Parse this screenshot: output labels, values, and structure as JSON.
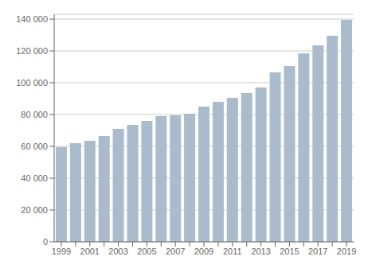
{
  "chart_data": {
    "type": "bar",
    "categories": [
      1999,
      null,
      2001,
      null,
      2003,
      null,
      2005,
      null,
      2007,
      null,
      2009,
      null,
      2011,
      null,
      2013,
      null,
      2015,
      null,
      2017,
      null,
      2019
    ],
    "values": [
      59500,
      62000,
      63500,
      66500,
      71000,
      73500,
      76000,
      79000,
      79500,
      80500,
      85000,
      88000,
      90500,
      93500,
      97000,
      106500,
      110500,
      118500,
      123500,
      129500,
      139500
    ],
    "color": "#aabbcc",
    "ylim": [
      0,
      143000
    ],
    "yticks": [
      0,
      {
        "value": 20000,
        "label": "20 000"
      },
      {
        "value": 40000,
        "label": "40 000"
      },
      {
        "value": 60000,
        "label": "60 000"
      },
      {
        "value": 80000,
        "label": "80 000"
      },
      {
        "value": 100000,
        "label": "100 000"
      },
      {
        "value": 120000,
        "label": "120 000"
      },
      {
        "value": 140000,
        "label": "140 000"
      }
    ],
    "grid": true
  }
}
